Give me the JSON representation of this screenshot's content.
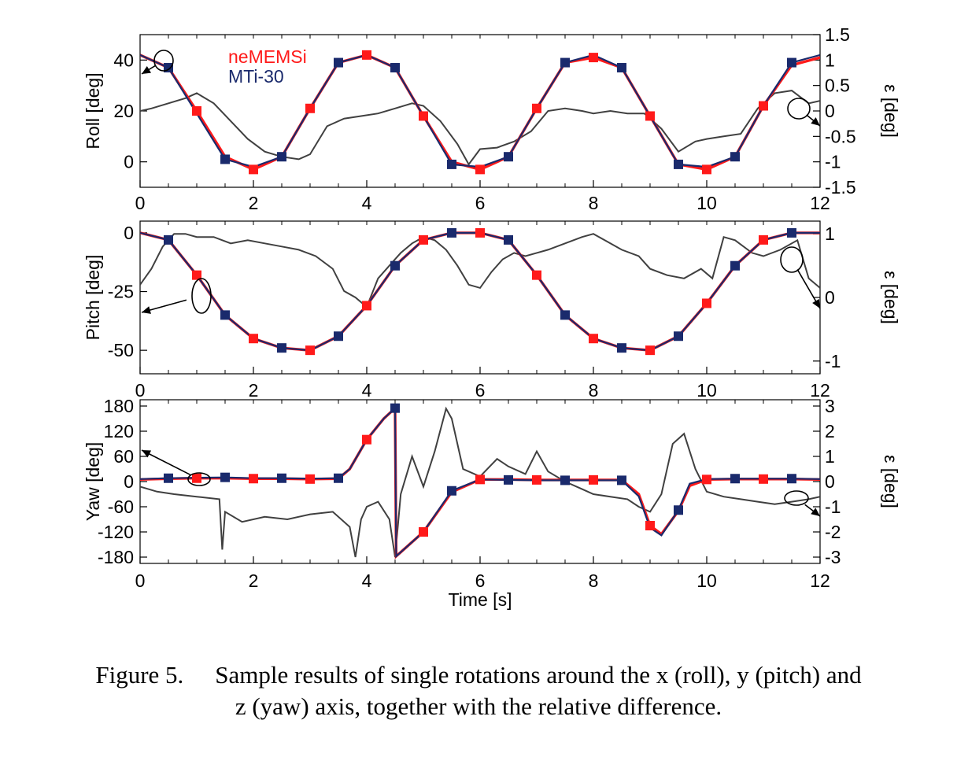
{
  "caption": {
    "label": "Figure 5.",
    "line1": "Sample results of single rotations around the x (roll), y (pitch) and",
    "line2": "z (yaw) axis, together with the relative difference."
  },
  "colors": {
    "nememsi": "#ff1a1a",
    "mti30": "#1a2a6c",
    "error": "#404040",
    "axis": "#000000"
  },
  "chart_data": [
    {
      "type": "line",
      "id": "roll",
      "ylabel": "Roll [deg]",
      "y2label": "ε [deg]",
      "xlabel": "",
      "xlim": [
        0,
        12
      ],
      "ylim": [
        -10,
        50
      ],
      "y2lim": [
        -1.5,
        1.5
      ],
      "xticks": [
        0,
        2,
        4,
        6,
        8,
        10,
        12
      ],
      "yticks": [
        0,
        20,
        40
      ],
      "y2ticks": [
        -1.5,
        -1,
        -0.5,
        0,
        0.5,
        1,
        1.5
      ],
      "legend": [
        "neMEMSi",
        "MTi-30"
      ],
      "series": [
        {
          "name": "neMEMSi",
          "axis": "left",
          "marker": "square",
          "x": [
            0,
            0.5,
            1,
            1.5,
            2,
            2.5,
            3,
            3.5,
            4,
            4.5,
            5,
            5.5,
            6,
            6.5,
            7,
            7.5,
            8,
            8.5,
            9,
            9.5,
            10,
            10.5,
            11,
            11.5,
            12
          ],
          "y": [
            42,
            37,
            20,
            2,
            -3,
            2,
            21,
            39,
            42,
            37,
            18,
            0,
            -3,
            2,
            21,
            39,
            41,
            37,
            18,
            -1,
            -3,
            2,
            22,
            38,
            41
          ]
        },
        {
          "name": "MTi-30",
          "axis": "left",
          "marker": "square",
          "x": [
            0,
            0.5,
            1,
            1.5,
            2,
            2.5,
            3,
            3.5,
            4,
            4.5,
            5,
            5.5,
            6,
            6.5,
            7,
            7.5,
            8,
            8.5,
            9,
            9.5,
            10,
            10.5,
            11,
            11.5,
            12
          ],
          "y": [
            42,
            37,
            19,
            1,
            -2,
            2,
            21,
            39,
            42,
            37,
            18,
            -1,
            -2,
            2,
            21,
            39,
            42,
            37,
            18,
            -1,
            -2,
            2,
            22,
            39,
            42
          ]
        },
        {
          "name": "",
          "axis": "right",
          "marker": "none",
          "x": [
            0,
            0.2,
            0.5,
            0.8,
            1.0,
            1.3,
            1.6,
            1.9,
            2.2,
            2.5,
            2.8,
            3.0,
            3.3,
            3.6,
            3.9,
            4.2,
            4.5,
            4.8,
            5.0,
            5.3,
            5.6,
            5.8,
            6.0,
            6.3,
            6.6,
            6.9,
            7.2,
            7.5,
            7.8,
            8.0,
            8.3,
            8.6,
            8.9,
            9.2,
            9.5,
            9.8,
            10.0,
            10.3,
            10.6,
            10.9,
            11.2,
            11.5,
            11.8,
            12.0
          ],
          "y": [
            0.0,
            0.05,
            0.15,
            0.25,
            0.35,
            0.15,
            -0.2,
            -0.55,
            -0.8,
            -0.9,
            -0.95,
            -0.85,
            -0.3,
            -0.15,
            -0.1,
            -0.05,
            0.05,
            0.15,
            0.1,
            -0.2,
            -0.65,
            -1.05,
            -0.75,
            -0.72,
            -0.6,
            -0.4,
            0.0,
            0.05,
            0.0,
            -0.05,
            0.0,
            -0.05,
            -0.05,
            -0.35,
            -0.8,
            -0.6,
            -0.55,
            -0.5,
            -0.45,
            0.05,
            0.35,
            0.4,
            0.15,
            0.2
          ]
        }
      ]
    },
    {
      "type": "line",
      "id": "pitch",
      "ylabel": "Pitch [deg]",
      "y2label": "ε [deg]",
      "xlabel": "",
      "xlim": [
        0,
        12
      ],
      "ylim": [
        -60,
        5
      ],
      "y2lim": [
        -1.2,
        1.2
      ],
      "xticks": [
        0,
        2,
        4,
        6,
        8,
        10,
        12
      ],
      "yticks": [
        -50,
        -25,
        0
      ],
      "y2ticks": [
        -1,
        0,
        1
      ],
      "series": [
        {
          "name": "neMEMSi",
          "axis": "left",
          "marker": "square",
          "x": [
            0,
            0.5,
            1,
            1.5,
            2,
            2.5,
            3,
            3.5,
            4,
            4.5,
            5,
            5.5,
            6,
            6.5,
            7,
            7.5,
            8,
            8.5,
            9,
            9.5,
            10,
            10.5,
            11,
            11.5,
            12
          ],
          "y": [
            0,
            -3,
            -18,
            -35,
            -45,
            -49,
            -50,
            -44,
            -31,
            -14,
            -3,
            0,
            0,
            -3,
            -18,
            -35,
            -45,
            -49,
            -50,
            -44,
            -30,
            -14,
            -3,
            0,
            0
          ]
        },
        {
          "name": "MTi-30",
          "axis": "left",
          "marker": "square",
          "x": [
            0,
            0.5,
            1,
            1.5,
            2,
            2.5,
            3,
            3.5,
            4,
            4.5,
            5,
            5.5,
            6,
            6.5,
            7,
            7.5,
            8,
            8.5,
            9,
            9.5,
            10,
            10.5,
            11,
            11.5,
            12
          ],
          "y": [
            0,
            -3,
            -18,
            -35,
            -45,
            -49,
            -50,
            -44,
            -31,
            -14,
            -3,
            0,
            0,
            -3,
            -18,
            -35,
            -45,
            -49,
            -50,
            -44,
            -30,
            -14,
            -3,
            0,
            0
          ]
        },
        {
          "name": "",
          "axis": "right",
          "marker": "none",
          "x": [
            0,
            0.2,
            0.4,
            0.6,
            0.8,
            1.0,
            1.3,
            1.6,
            1.9,
            2.2,
            2.5,
            2.8,
            3.1,
            3.4,
            3.6,
            3.8,
            4.0,
            4.2,
            4.4,
            4.6,
            4.8,
            5.0,
            5.2,
            5.4,
            5.6,
            5.8,
            6.0,
            6.2,
            6.4,
            6.6,
            6.8,
            7.0,
            7.2,
            7.5,
            7.8,
            8.0,
            8.2,
            8.5,
            8.8,
            9.0,
            9.3,
            9.6,
            9.9,
            10.1,
            10.3,
            10.5,
            10.8,
            11.0,
            11.3,
            11.6,
            11.8,
            12.0
          ],
          "y": [
            0.2,
            0.45,
            0.8,
            1.0,
            1.0,
            0.95,
            0.95,
            0.85,
            0.9,
            0.85,
            0.8,
            0.75,
            0.65,
            0.45,
            0.1,
            0.0,
            -0.15,
            0.3,
            0.5,
            0.7,
            0.85,
            0.95,
            0.9,
            0.75,
            0.5,
            0.2,
            0.15,
            0.4,
            0.6,
            0.7,
            0.65,
            0.7,
            0.75,
            0.85,
            0.95,
            1.0,
            0.9,
            0.75,
            0.65,
            0.45,
            0.35,
            0.3,
            0.45,
            0.3,
            0.95,
            0.9,
            0.7,
            0.65,
            0.75,
            0.9,
            0.3,
            0.15
          ]
        }
      ]
    },
    {
      "type": "line",
      "id": "yaw",
      "ylabel": "Yaw [deg]",
      "y2label": "ε [deg]",
      "xlabel": "Time [s]",
      "xlim": [
        0,
        12
      ],
      "ylim": [
        -195,
        195
      ],
      "y2lim": [
        -3.25,
        3.25
      ],
      "xticks": [
        0,
        2,
        4,
        6,
        8,
        10,
        12
      ],
      "yticks": [
        -180,
        -120,
        -60,
        0,
        60,
        120,
        180
      ],
      "y2ticks": [
        -3,
        -2,
        -1,
        0,
        1,
        2,
        3
      ],
      "series": [
        {
          "name": "neMEMSi",
          "axis": "left",
          "marker": "square",
          "x": [
            0,
            0.5,
            1,
            1.5,
            2,
            2.5,
            3,
            3.5,
            3.7,
            4,
            4.3,
            4.5,
            4.52,
            5,
            5.5,
            6,
            6.5,
            7,
            7.5,
            8,
            8.5,
            8.8,
            9,
            9.2,
            9.5,
            9.7,
            10,
            10.5,
            11,
            11.5,
            12
          ],
          "y": [
            5,
            7,
            8,
            8,
            7,
            7,
            6,
            7,
            30,
            100,
            150,
            175,
            -178,
            -120,
            -25,
            5,
            5,
            4,
            4,
            4,
            4,
            -30,
            -105,
            -125,
            -70,
            -10,
            5,
            6,
            6,
            6,
            5
          ]
        },
        {
          "name": "MTi-30",
          "axis": "left",
          "marker": "square",
          "x": [
            0,
            0.5,
            1,
            1.5,
            2,
            2.5,
            3,
            3.5,
            3.7,
            4,
            4.3,
            4.5,
            4.52,
            5,
            5.5,
            6,
            6.5,
            7,
            7.5,
            8,
            8.5,
            8.8,
            9,
            9.2,
            9.5,
            9.7,
            10,
            10.5,
            11,
            11.5,
            12
          ],
          "y": [
            6,
            8,
            9,
            10,
            8,
            8,
            7,
            8,
            30,
            100,
            150,
            175,
            -178,
            -120,
            -22,
            5,
            4,
            3,
            3,
            3,
            3,
            -35,
            -110,
            -128,
            -68,
            -5,
            6,
            7,
            7,
            7,
            6
          ]
        },
        {
          "name": "",
          "axis": "right",
          "marker": "none",
          "x": [
            0,
            0.3,
            0.6,
            1.0,
            1.4,
            1.45,
            1.5,
            1.8,
            2.2,
            2.6,
            3.0,
            3.4,
            3.7,
            3.8,
            3.9,
            4.0,
            4.2,
            4.4,
            4.5,
            4.6,
            4.8,
            5.0,
            5.2,
            5.4,
            5.5,
            5.7,
            6.0,
            6.3,
            6.5,
            6.8,
            7.0,
            7.2,
            7.5,
            7.8,
            8.0,
            8.3,
            8.6,
            8.8,
            9.0,
            9.2,
            9.4,
            9.6,
            9.8,
            10.0,
            10.3,
            10.6,
            10.9,
            11.2,
            11.5,
            11.8,
            12.0
          ],
          "y": [
            -0.2,
            -0.4,
            -0.5,
            -0.6,
            -0.7,
            -2.7,
            -1.2,
            -1.6,
            -1.4,
            -1.5,
            -1.3,
            -1.2,
            -1.8,
            -3.0,
            -1.5,
            -1.0,
            -0.8,
            -1.5,
            -3.0,
            -0.5,
            1.0,
            -0.2,
            1.2,
            2.9,
            2.5,
            0.5,
            0.2,
            0.9,
            0.6,
            0.3,
            1.2,
            0.4,
            0.0,
            -0.3,
            -0.5,
            -0.6,
            -0.7,
            -1.0,
            -1.2,
            -0.5,
            1.5,
            1.9,
            0.5,
            -0.4,
            -0.6,
            -0.7,
            -0.8,
            -0.9,
            -0.8,
            -0.7,
            -0.6
          ]
        }
      ]
    }
  ]
}
